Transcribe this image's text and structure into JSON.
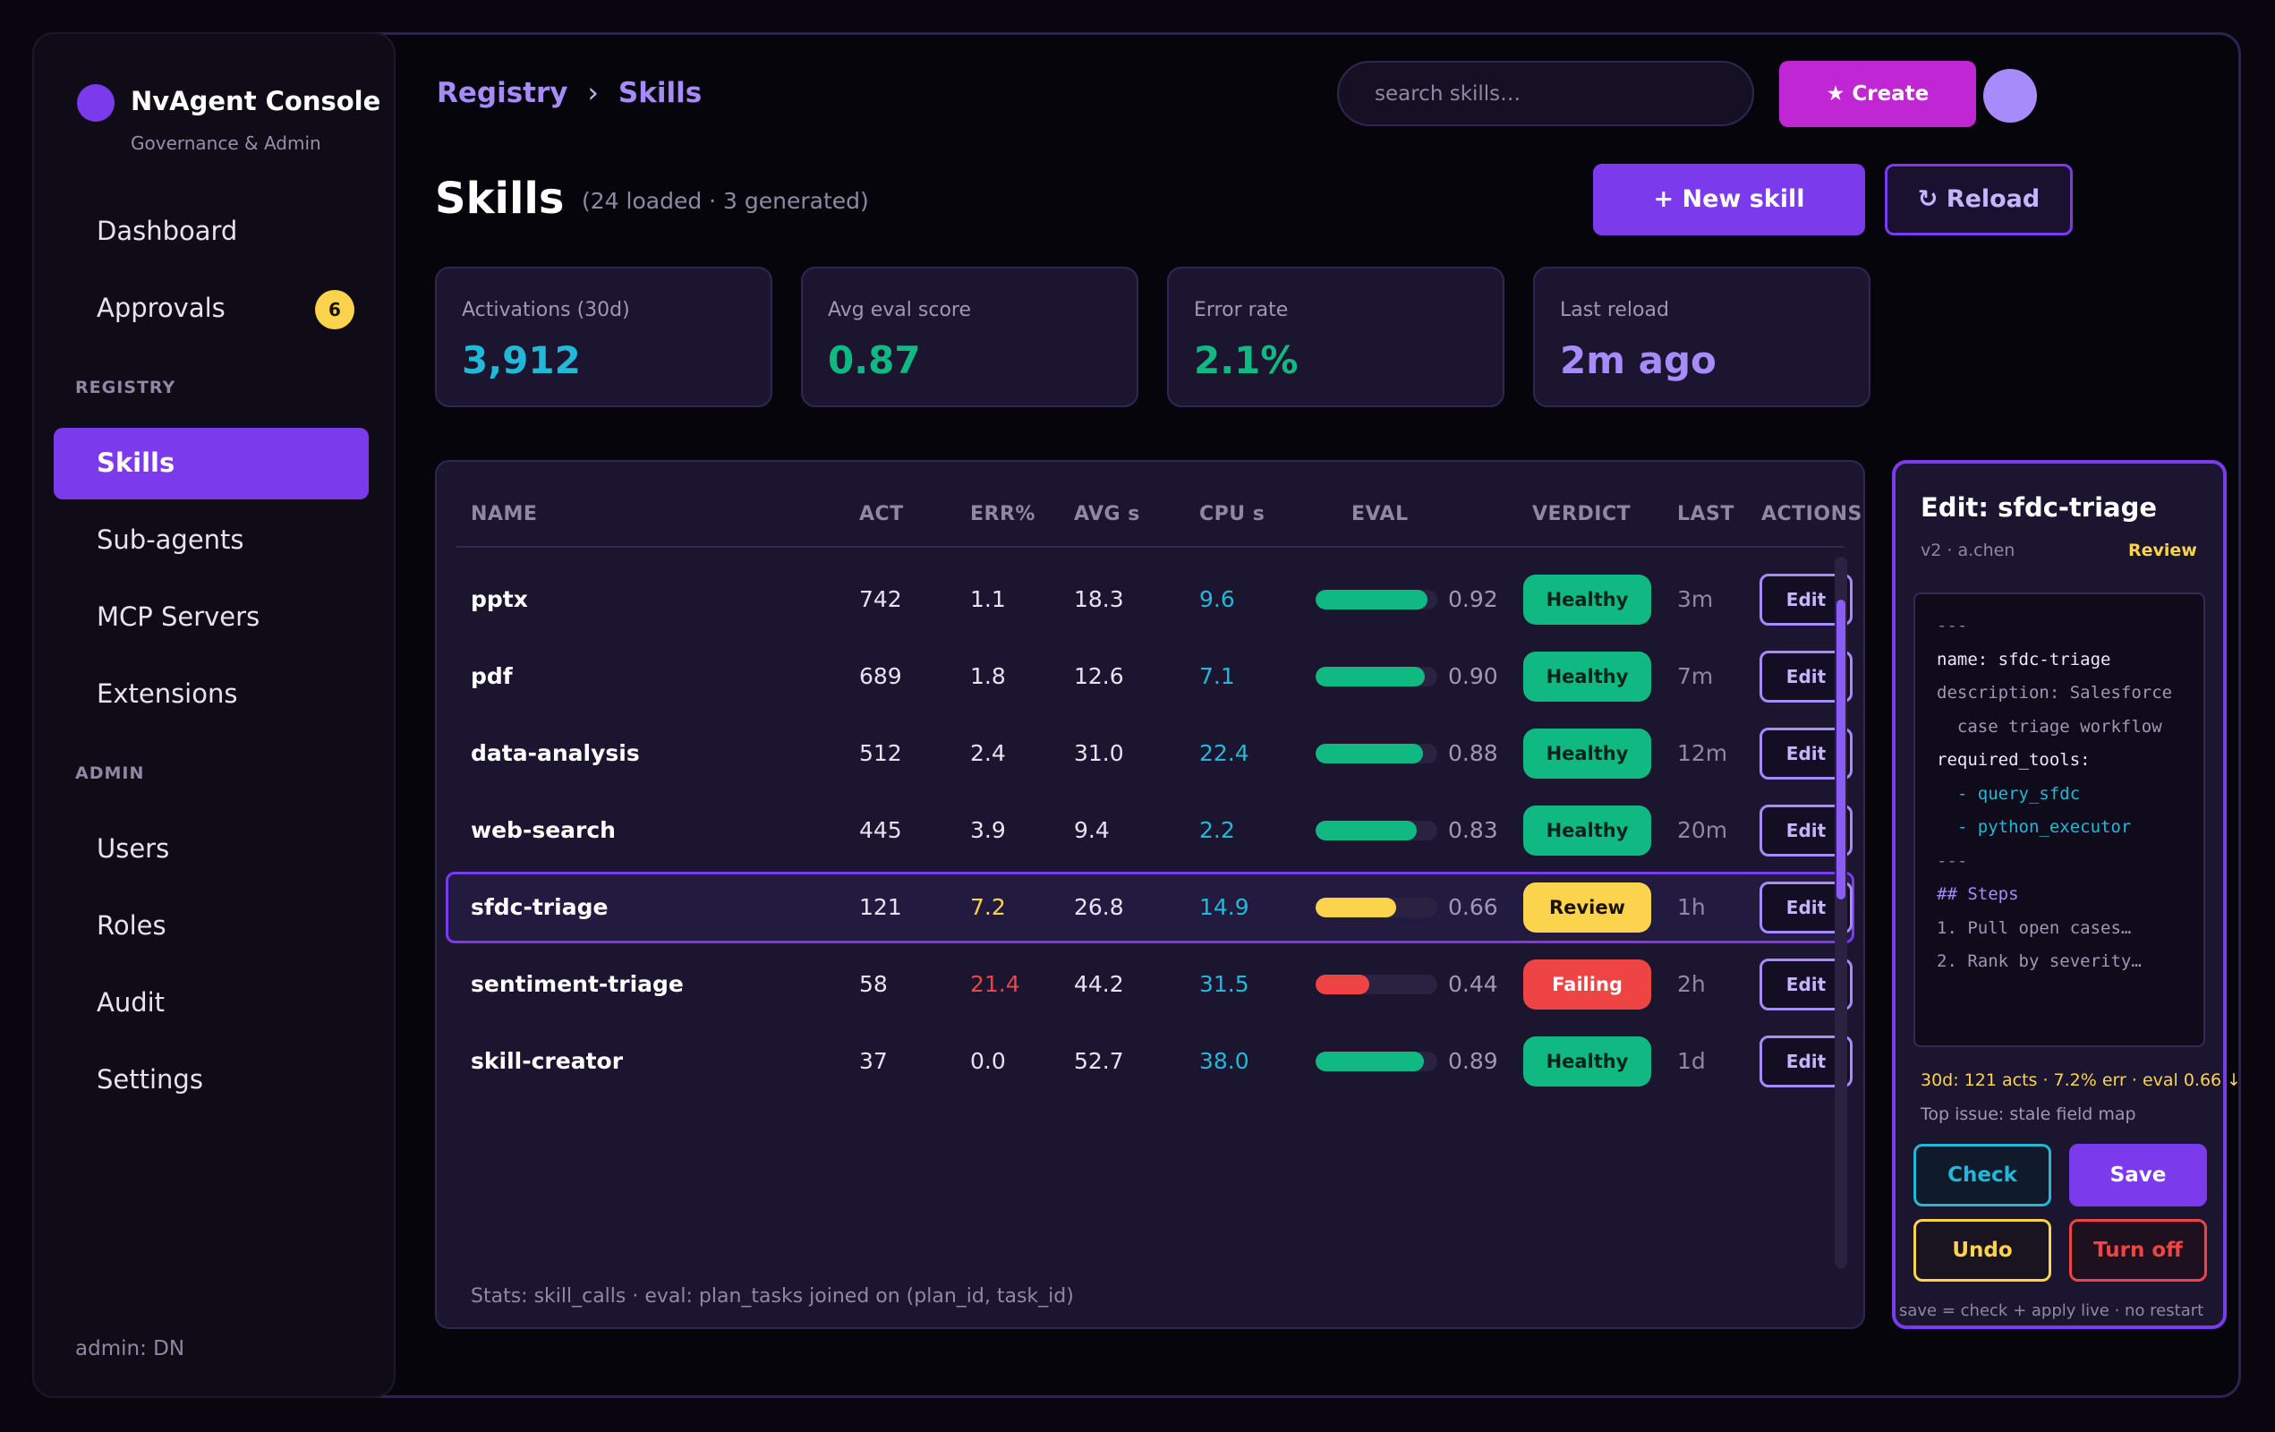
{
  "sidebar": {
    "brand": "NvAgent Console",
    "brand_sub": "Governance & Admin",
    "items": [
      {
        "label": "Dashboard"
      },
      {
        "label": "Approvals",
        "badge": "6"
      },
      {
        "label": "Skills"
      },
      {
        "label": "Sub-agents"
      },
      {
        "label": "MCP Servers"
      },
      {
        "label": "Extensions"
      },
      {
        "label": "Users"
      },
      {
        "label": "Roles"
      },
      {
        "label": "Audit"
      },
      {
        "label": "Settings"
      }
    ],
    "section_registry": "REGISTRY",
    "section_admin": "ADMIN",
    "admin_label": "admin: DN",
    "active_item": "Skills"
  },
  "header": {
    "breadcrumb": [
      "Registry",
      "Skills"
    ],
    "breadcrumb_sep": "›",
    "search_placeholder": "search skills…",
    "create_label": "★ Create"
  },
  "page": {
    "title": "Skills",
    "subtitle": "(24 loaded · 3 generated)",
    "new_label": "+  New skill",
    "reload_label": "↻  Reload"
  },
  "stats": [
    {
      "label": "Activations (30d)",
      "value": "3,912",
      "color": "#22b8d8"
    },
    {
      "label": "Avg eval score",
      "value": "0.87",
      "color": "#10b981"
    },
    {
      "label": "Error rate",
      "value": "2.1%",
      "color": "#10b981"
    },
    {
      "label": "Last reload",
      "value": "2m ago",
      "color": "#a78bfa"
    }
  ],
  "table": {
    "headers": [
      "NAME",
      "ACT",
      "ERR%",
      "AVG s",
      "CPU s",
      "EVAL",
      "VERDICT",
      "LAST",
      "ACTIONS"
    ],
    "rows": [
      {
        "name": "pptx",
        "act": "742",
        "err": "1.1",
        "avg": "18.3",
        "cpu": "9.6",
        "eval": 0.92,
        "eval_label": "0.92",
        "verdict": "Healthy",
        "last": "3m",
        "action": "Edit"
      },
      {
        "name": "pdf",
        "act": "689",
        "err": "1.8",
        "avg": "12.6",
        "cpu": "7.1",
        "eval": 0.9,
        "eval_label": "0.90",
        "verdict": "Healthy",
        "last": "7m",
        "action": "Edit"
      },
      {
        "name": "data-analysis",
        "act": "512",
        "err": "2.4",
        "avg": "31.0",
        "cpu": "22.4",
        "eval": 0.88,
        "eval_label": "0.88",
        "verdict": "Healthy",
        "last": "12m",
        "action": "Edit"
      },
      {
        "name": "web-search",
        "act": "445",
        "err": "3.9",
        "avg": "9.4",
        "cpu": "2.2",
        "eval": 0.83,
        "eval_label": "0.83",
        "verdict": "Healthy",
        "last": "20m",
        "action": "Edit"
      },
      {
        "name": "sfdc-triage",
        "act": "121",
        "err": "7.2",
        "avg": "26.8",
        "cpu": "14.9",
        "eval": 0.66,
        "eval_label": "0.66",
        "verdict": "Review",
        "last": "1h",
        "action": "Edit",
        "selected": true
      },
      {
        "name": "sentiment-triage",
        "act": "58",
        "err": "21.4",
        "avg": "44.2",
        "cpu": "31.5",
        "eval": 0.44,
        "eval_label": "0.44",
        "verdict": "Failing",
        "last": "2h",
        "action": "Edit"
      },
      {
        "name": "skill-creator",
        "act": "37",
        "err": "0.0",
        "avg": "52.7",
        "cpu": "38.0",
        "eval": 0.89,
        "eval_label": "0.89",
        "verdict": "Healthy",
        "last": "1d",
        "action": "Edit"
      }
    ],
    "footnote": "Stats: skill_calls · eval: plan_tasks joined on (plan_id, task_id)"
  },
  "colors": {
    "accent": "#7c3aed",
    "healthy": "#10b981",
    "review": "#fcd34d",
    "failing": "#ef4444",
    "cyan": "#22b8d8",
    "create": "#c026d3"
  },
  "panel": {
    "title": "Edit: sfdc-triage",
    "meta": "v2 · a.chen",
    "status": "Review",
    "code": [
      {
        "text": "---",
        "color": "#7d7894"
      },
      {
        "text": "name: sfdc-triage",
        "color": "#ece8f8"
      },
      {
        "text": "description: Salesforce",
        "color": "#9d98b3"
      },
      {
        "text": "  case triage workflow",
        "color": "#9d98b3"
      },
      {
        "text": "required_tools:",
        "color": "#ece8f8"
      },
      {
        "text": "  - query_sfdc",
        "color": "#22b8d8"
      },
      {
        "text": "  - python_executor",
        "color": "#22b8d8"
      },
      {
        "text": "---",
        "color": "#7d7894"
      },
      {
        "text": "## Steps",
        "color": "#a78bfa"
      },
      {
        "text": "1. Pull open cases…",
        "color": "#9d98b3"
      },
      {
        "text": "2. Rank by severity…",
        "color": "#9d98b3"
      }
    ],
    "stats": "30d: 121 acts · 7.2% err · eval 0.66 ↓",
    "issue": "Top issue: stale field map",
    "check_label": "Check",
    "save_label": "Save",
    "undo_label": "Undo",
    "turnoff_label": "Turn off",
    "note": "save = check + apply live · no restart"
  }
}
